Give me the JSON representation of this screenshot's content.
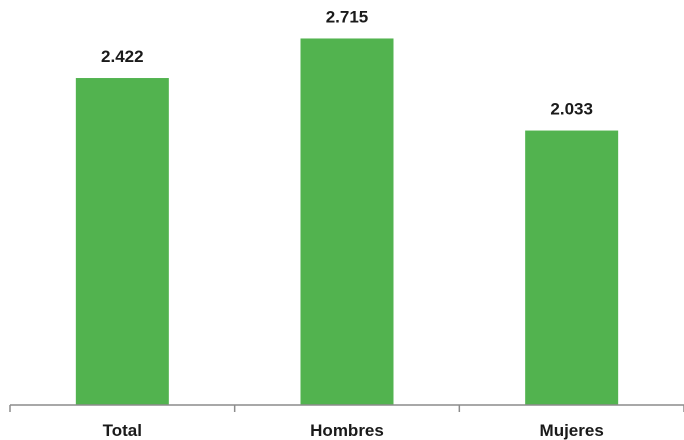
{
  "chart_data": {
    "type": "bar",
    "categories": [
      "Total",
      "Hombres",
      "Mujeres"
    ],
    "values": [
      2.422,
      2.715,
      2.033
    ],
    "value_labels": [
      "2.422",
      "2.715",
      "2.033"
    ],
    "title": "",
    "xlabel": "",
    "ylabel": "",
    "ylim": [
      0,
      3.0
    ],
    "grid": false,
    "legend": "none",
    "bar_color": "#52b34f",
    "axis_color": "#8c8c8c"
  }
}
